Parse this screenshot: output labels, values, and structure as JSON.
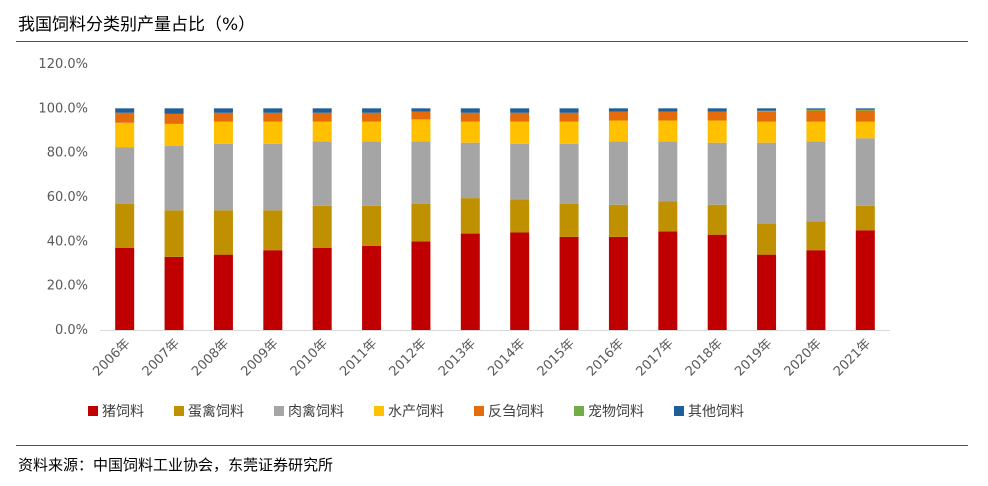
{
  "header": {
    "title": "我国饲料分类别产量占比（%）"
  },
  "footer": {
    "source": "资料来源：中国饲料工业协会，东莞证券研究所"
  },
  "colors": {
    "rule": "#b0282d",
    "axis": "#d9d9d9",
    "text": "#595959"
  },
  "chart_data": {
    "type": "bar",
    "stacked": true,
    "title": "我国饲料分类别产量占比（%）",
    "xlabel": "",
    "ylabel": "",
    "ylim": [
      0,
      1.2
    ],
    "yticks": [
      0,
      0.2,
      0.4,
      0.6,
      0.8,
      1.0,
      1.2
    ],
    "ytick_labels": [
      "0.0%",
      "20.0%",
      "40.0%",
      "60.0%",
      "80.0%",
      "100.0%",
      "120.0%"
    ],
    "grid": false,
    "legend_position": "bottom",
    "categories": [
      "2006年",
      "2007年",
      "2008年",
      "2009年",
      "2010年",
      "2011年",
      "2012年",
      "2013年",
      "2014年",
      "2015年",
      "2016年",
      "2017年",
      "2018年",
      "2019年",
      "2020年",
      "2021年"
    ],
    "series": [
      {
        "name": "猪饲料",
        "color": "#c00000",
        "values": [
          0.37,
          0.33,
          0.34,
          0.36,
          0.37,
          0.38,
          0.4,
          0.435,
          0.44,
          0.42,
          0.42,
          0.445,
          0.43,
          0.34,
          0.36,
          0.45
        ]
      },
      {
        "name": "蛋禽饲料",
        "color": "#bf9000",
        "values": [
          0.2,
          0.21,
          0.2,
          0.18,
          0.19,
          0.18,
          0.17,
          0.16,
          0.15,
          0.15,
          0.145,
          0.135,
          0.135,
          0.14,
          0.13,
          0.11
        ]
      },
      {
        "name": "肉禽饲料",
        "color": "#a5a5a5",
        "values": [
          0.255,
          0.29,
          0.3,
          0.3,
          0.29,
          0.29,
          0.28,
          0.25,
          0.25,
          0.27,
          0.285,
          0.27,
          0.28,
          0.365,
          0.36,
          0.305
        ]
      },
      {
        "name": "水产饲料",
        "color": "#ffc000",
        "values": [
          0.11,
          0.1,
          0.1,
          0.1,
          0.09,
          0.09,
          0.1,
          0.095,
          0.1,
          0.1,
          0.095,
          0.095,
          0.1,
          0.095,
          0.09,
          0.075
        ]
      },
      {
        "name": "反刍饲料",
        "color": "#e46c0a",
        "values": [
          0.045,
          0.045,
          0.04,
          0.04,
          0.04,
          0.04,
          0.035,
          0.04,
          0.04,
          0.04,
          0.04,
          0.04,
          0.04,
          0.045,
          0.05,
          0.05
        ]
      },
      {
        "name": "宠物饲料",
        "color": "#70ad47",
        "values": [
          0,
          0,
          0,
          0,
          0,
          0,
          0,
          0,
          0,
          0,
          0,
          0,
          0,
          0.004,
          0.004,
          0.004
        ]
      },
      {
        "name": "其他饲料",
        "color": "#1f5f99",
        "values": [
          0.02,
          0.025,
          0.02,
          0.02,
          0.02,
          0.02,
          0.015,
          0.02,
          0.02,
          0.02,
          0.015,
          0.015,
          0.015,
          0.011,
          0.006,
          0.006
        ]
      }
    ]
  }
}
